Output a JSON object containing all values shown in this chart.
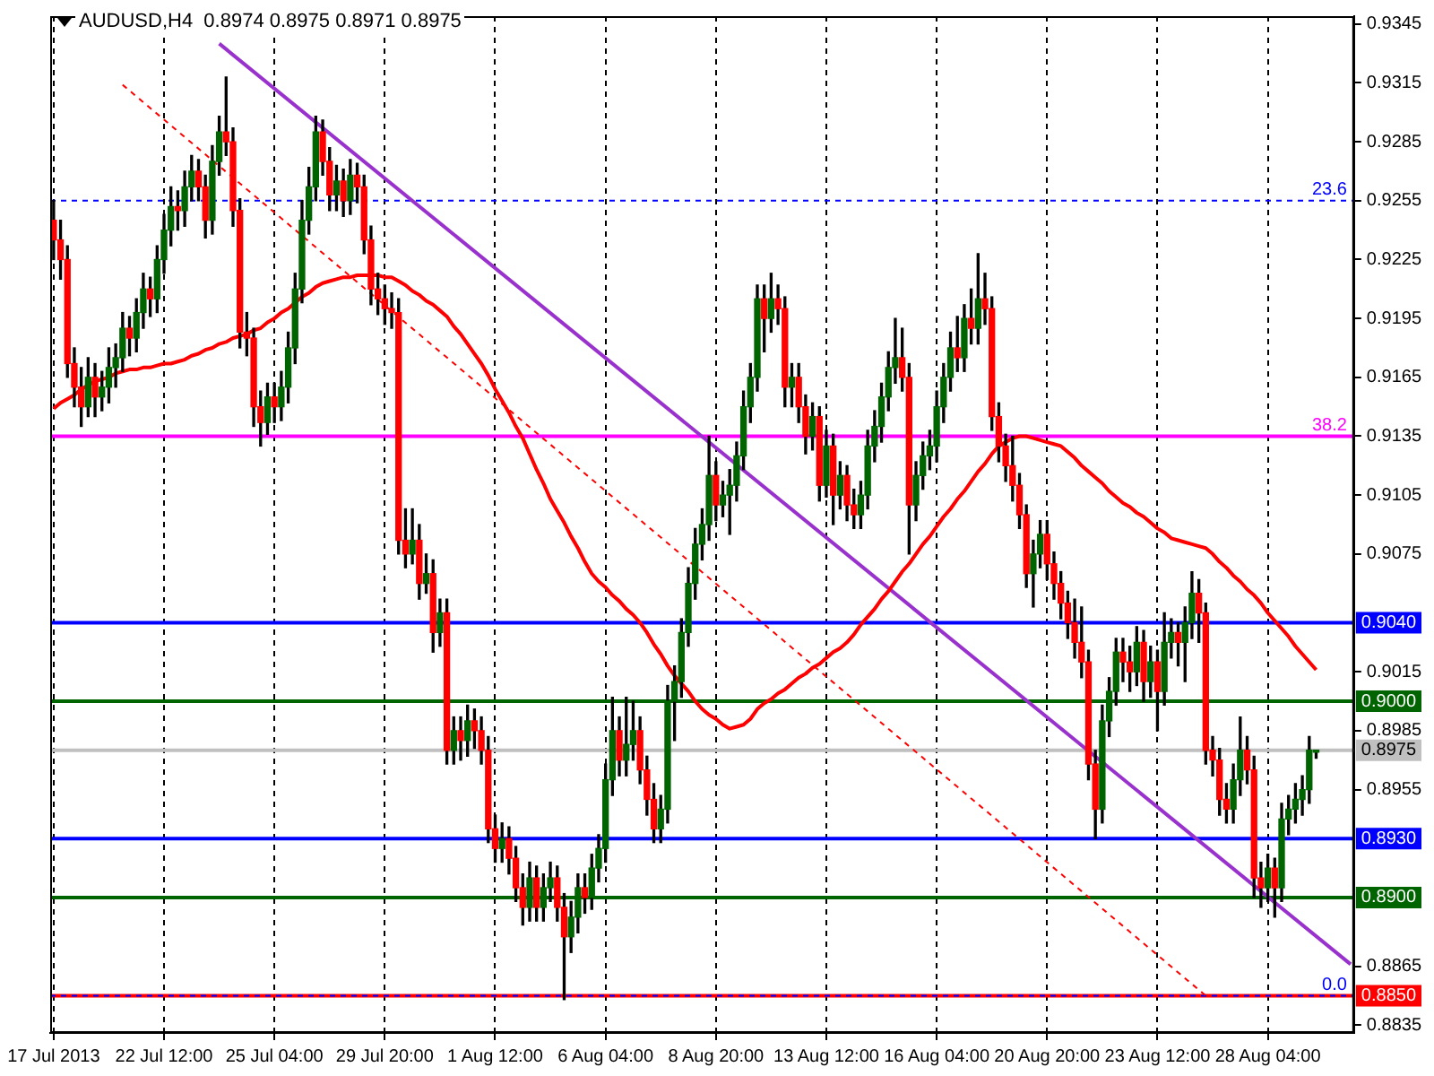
{
  "chart_data": {
    "type": "candlestick",
    "title": "AUDUSD,H4  0.8974 0.8975 0.8971 0.8975",
    "categories": [
      "17 Jul 2013",
      null,
      null,
      null,
      null,
      null,
      null,
      null,
      null,
      null,
      null,
      null,
      null,
      null,
      null,
      null,
      "22 Jul 12:00",
      null,
      null,
      null,
      null,
      null,
      null,
      null,
      null,
      null,
      null,
      null,
      null,
      null,
      null,
      null,
      "25 Jul 04:00",
      null,
      null,
      null,
      null,
      null,
      null,
      null,
      null,
      null,
      null,
      null,
      null,
      null,
      null,
      null,
      "29 Jul 20:00",
      null,
      null,
      null,
      null,
      null,
      null,
      null,
      null,
      null,
      null,
      null,
      null,
      null,
      null,
      null,
      "1 Aug 12:00",
      null,
      null,
      null,
      null,
      null,
      null,
      null,
      null,
      null,
      null,
      null,
      null,
      null,
      null,
      null,
      "6 Aug 04:00",
      null,
      null,
      null,
      null,
      null,
      null,
      null,
      null,
      null,
      null,
      null,
      null,
      null,
      null,
      null,
      "8 Aug 20:00",
      null,
      null,
      null,
      null,
      null,
      null,
      null,
      null,
      null,
      null,
      null,
      null,
      null,
      null,
      null,
      "13 Aug 12:00",
      null,
      null,
      null,
      null,
      null,
      null,
      null,
      null,
      null,
      null,
      null,
      null,
      null,
      null,
      null,
      "16 Aug 04:00",
      null,
      null,
      null,
      null,
      null,
      null,
      null,
      null,
      null,
      null,
      null,
      null,
      null,
      null,
      null,
      "20 Aug 20:00",
      null,
      null,
      null,
      null,
      null,
      null,
      null,
      null,
      null,
      null,
      null,
      null,
      null,
      null,
      null,
      "23 Aug 12:00",
      null,
      null,
      null,
      null,
      null,
      null,
      null,
      null,
      null,
      null,
      null,
      null,
      null,
      null,
      null,
      "28 Aug 04:00",
      null,
      null,
      null,
      null,
      null,
      null,
      null,
      null,
      null,
      null,
      null,
      null
    ],
    "ohlc": [
      [
        0.9245,
        0.9255,
        0.9225,
        0.9235
      ],
      [
        0.9235,
        0.9245,
        0.9215,
        0.9225
      ],
      [
        0.9225,
        0.9232,
        0.9165,
        0.9172
      ],
      [
        0.9172,
        0.918,
        0.915,
        0.916
      ],
      [
        0.916,
        0.917,
        0.914,
        0.915
      ],
      [
        0.915,
        0.9175,
        0.9145,
        0.9165
      ],
      [
        0.9165,
        0.9172,
        0.9145,
        0.9155
      ],
      [
        0.9155,
        0.9168,
        0.9148,
        0.916
      ],
      [
        0.916,
        0.918,
        0.9152,
        0.917
      ],
      [
        0.917,
        0.9182,
        0.916,
        0.9175
      ],
      [
        0.9175,
        0.9198,
        0.9168,
        0.919
      ],
      [
        0.919,
        0.9196,
        0.9176,
        0.9185
      ],
      [
        0.9185,
        0.9205,
        0.9178,
        0.9198
      ],
      [
        0.9198,
        0.9218,
        0.919,
        0.921
      ],
      [
        0.921,
        0.9216,
        0.9196,
        0.9205
      ],
      [
        0.9205,
        0.9232,
        0.9198,
        0.9225
      ],
      [
        0.9225,
        0.9248,
        0.9218,
        0.924
      ],
      [
        0.924,
        0.9262,
        0.9232,
        0.9252
      ],
      [
        0.9252,
        0.926,
        0.924,
        0.925
      ],
      [
        0.925,
        0.927,
        0.9242,
        0.9262
      ],
      [
        0.9262,
        0.9278,
        0.9255,
        0.927
      ],
      [
        0.927,
        0.9276,
        0.9255,
        0.9262
      ],
      [
        0.9262,
        0.9268,
        0.9236,
        0.9245
      ],
      [
        0.9245,
        0.9283,
        0.9238,
        0.9275
      ],
      [
        0.9275,
        0.9298,
        0.9268,
        0.929
      ],
      [
        0.929,
        0.9318,
        0.9278,
        0.9285
      ],
      [
        0.9285,
        0.9292,
        0.9242,
        0.925
      ],
      [
        0.925,
        0.9256,
        0.918,
        0.9188
      ],
      [
        0.9188,
        0.9198,
        0.9176,
        0.9185
      ],
      [
        0.9185,
        0.919,
        0.914,
        0.915
      ],
      [
        0.915,
        0.9158,
        0.913,
        0.9142
      ],
      [
        0.9142,
        0.9162,
        0.9136,
        0.9155
      ],
      [
        0.9155,
        0.9162,
        0.9142,
        0.915
      ],
      [
        0.915,
        0.9168,
        0.9143,
        0.916
      ],
      [
        0.916,
        0.9188,
        0.9152,
        0.918
      ],
      [
        0.918,
        0.9218,
        0.9172,
        0.921
      ],
      [
        0.921,
        0.9255,
        0.9203,
        0.9245
      ],
      [
        0.9245,
        0.9272,
        0.9238,
        0.9262
      ],
      [
        0.9262,
        0.9298,
        0.9255,
        0.929
      ],
      [
        0.929,
        0.9296,
        0.9268,
        0.9275
      ],
      [
        0.9275,
        0.9282,
        0.925,
        0.9258
      ],
      [
        0.9258,
        0.9273,
        0.925,
        0.9265
      ],
      [
        0.9265,
        0.9271,
        0.9247,
        0.9255
      ],
      [
        0.9255,
        0.9276,
        0.9248,
        0.9268
      ],
      [
        0.9268,
        0.9274,
        0.9254,
        0.9262
      ],
      [
        0.9262,
        0.9268,
        0.9228,
        0.9235
      ],
      [
        0.9235,
        0.9242,
        0.9202,
        0.921
      ],
      [
        0.921,
        0.9218,
        0.9197,
        0.9205
      ],
      [
        0.9205,
        0.9212,
        0.9192,
        0.92
      ],
      [
        0.92,
        0.9208,
        0.919,
        0.9198
      ],
      [
        0.9198,
        0.9205,
        0.9075,
        0.9082
      ],
      [
        0.9082,
        0.9098,
        0.9068,
        0.9075
      ],
      [
        0.9075,
        0.9098,
        0.907,
        0.9082
      ],
      [
        0.9082,
        0.909,
        0.9052,
        0.906
      ],
      [
        0.906,
        0.9075,
        0.9055,
        0.9065
      ],
      [
        0.9065,
        0.9072,
        0.9025,
        0.9035
      ],
      [
        0.9035,
        0.9052,
        0.9028,
        0.9045
      ],
      [
        0.9045,
        0.9052,
        0.8968,
        0.8975
      ],
      [
        0.8975,
        0.8992,
        0.8968,
        0.8985
      ],
      [
        0.8985,
        0.8992,
        0.897,
        0.898
      ],
      [
        0.898,
        0.8998,
        0.8972,
        0.899
      ],
      [
        0.899,
        0.8996,
        0.8976,
        0.8985
      ],
      [
        0.8985,
        0.8992,
        0.8968,
        0.8975
      ],
      [
        0.8975,
        0.8982,
        0.8928,
        0.8935
      ],
      [
        0.8935,
        0.8942,
        0.8918,
        0.8925
      ],
      [
        0.8925,
        0.8938,
        0.8918,
        0.893
      ],
      [
        0.893,
        0.8936,
        0.8912,
        0.892
      ],
      [
        0.892,
        0.8926,
        0.8898,
        0.8905
      ],
      [
        0.8905,
        0.8912,
        0.8886,
        0.8895
      ],
      [
        0.8895,
        0.8918,
        0.8888,
        0.891
      ],
      [
        0.891,
        0.8916,
        0.8888,
        0.8895
      ],
      [
        0.8895,
        0.8912,
        0.8888,
        0.8905
      ],
      [
        0.8905,
        0.8918,
        0.8898,
        0.891
      ],
      [
        0.891,
        0.8916,
        0.8888,
        0.8895
      ],
      [
        0.8895,
        0.8902,
        0.8848,
        0.888
      ],
      [
        0.888,
        0.8898,
        0.8872,
        0.889
      ],
      [
        0.889,
        0.8912,
        0.8882,
        0.8905
      ],
      [
        0.8905,
        0.8912,
        0.8892,
        0.89
      ],
      [
        0.89,
        0.8922,
        0.8894,
        0.8915
      ],
      [
        0.8915,
        0.8932,
        0.8908,
        0.8925
      ],
      [
        0.8925,
        0.8968,
        0.8918,
        0.896
      ],
      [
        0.896,
        0.9002,
        0.8952,
        0.8985
      ],
      [
        0.8985,
        0.8992,
        0.8962,
        0.897
      ],
      [
        0.897,
        0.9002,
        0.8962,
        0.8978
      ],
      [
        0.8978,
        0.9,
        0.897,
        0.8985
      ],
      [
        0.8985,
        0.8992,
        0.8958,
        0.8965
      ],
      [
        0.8965,
        0.8972,
        0.8942,
        0.895
      ],
      [
        0.895,
        0.8958,
        0.8928,
        0.8935
      ],
      [
        0.8935,
        0.8952,
        0.8928,
        0.8945
      ],
      [
        0.8945,
        0.9008,
        0.8938,
        0.9
      ],
      [
        0.9,
        0.9018,
        0.898,
        0.901
      ],
      [
        0.901,
        0.9042,
        0.9002,
        0.9035
      ],
      [
        0.9035,
        0.9068,
        0.9028,
        0.906
      ],
      [
        0.906,
        0.9088,
        0.9052,
        0.908
      ],
      [
        0.908,
        0.9098,
        0.9072,
        0.909
      ],
      [
        0.909,
        0.9135,
        0.9082,
        0.9115
      ],
      [
        0.9115,
        0.9122,
        0.9092,
        0.91
      ],
      [
        0.91,
        0.9112,
        0.9094,
        0.9105
      ],
      [
        0.9105,
        0.9118,
        0.9085,
        0.911
      ],
      [
        0.911,
        0.9132,
        0.9102,
        0.9125
      ],
      [
        0.9125,
        0.9158,
        0.9118,
        0.915
      ],
      [
        0.915,
        0.9172,
        0.9142,
        0.9165
      ],
      [
        0.9165,
        0.9212,
        0.9158,
        0.9205
      ],
      [
        0.9205,
        0.9212,
        0.9178,
        0.9195
      ],
      [
        0.9195,
        0.9218,
        0.9188,
        0.9205
      ],
      [
        0.9205,
        0.9212,
        0.9192,
        0.92
      ],
      [
        0.92,
        0.9206,
        0.915,
        0.916
      ],
      [
        0.916,
        0.9172,
        0.915,
        0.9165
      ],
      [
        0.9165,
        0.9172,
        0.9142,
        0.915
      ],
      [
        0.915,
        0.9156,
        0.9126,
        0.9135
      ],
      [
        0.9135,
        0.9152,
        0.9128,
        0.9145
      ],
      [
        0.9145,
        0.915,
        0.9102,
        0.911
      ],
      [
        0.911,
        0.9138,
        0.9104,
        0.913
      ],
      [
        0.913,
        0.9136,
        0.909,
        0.9105
      ],
      [
        0.9105,
        0.9122,
        0.9098,
        0.9115
      ],
      [
        0.9115,
        0.912,
        0.9092,
        0.91
      ],
      [
        0.91,
        0.9108,
        0.9088,
        0.9095
      ],
      [
        0.9095,
        0.9112,
        0.9088,
        0.9105
      ],
      [
        0.9105,
        0.9138,
        0.9098,
        0.913
      ],
      [
        0.913,
        0.9148,
        0.9122,
        0.914
      ],
      [
        0.914,
        0.9162,
        0.9132,
        0.9155
      ],
      [
        0.9155,
        0.9178,
        0.9148,
        0.917
      ],
      [
        0.917,
        0.9195,
        0.9162,
        0.9175
      ],
      [
        0.9175,
        0.919,
        0.9158,
        0.9165
      ],
      [
        0.9165,
        0.9172,
        0.9075,
        0.91
      ],
      [
        0.91,
        0.9122,
        0.9092,
        0.9115
      ],
      [
        0.9115,
        0.9132,
        0.9108,
        0.9125
      ],
      [
        0.9125,
        0.9138,
        0.9118,
        0.913
      ],
      [
        0.913,
        0.9158,
        0.9122,
        0.915
      ],
      [
        0.915,
        0.9172,
        0.9142,
        0.9165
      ],
      [
        0.9165,
        0.9188,
        0.9158,
        0.918
      ],
      [
        0.918,
        0.9196,
        0.9168,
        0.9175
      ],
      [
        0.9175,
        0.9202,
        0.9168,
        0.9195
      ],
      [
        0.9195,
        0.921,
        0.9182,
        0.919
      ],
      [
        0.919,
        0.9228,
        0.9182,
        0.9205
      ],
      [
        0.9205,
        0.9218,
        0.9192,
        0.92
      ],
      [
        0.92,
        0.9206,
        0.9138,
        0.9145
      ],
      [
        0.9145,
        0.9152,
        0.9122,
        0.913
      ],
      [
        0.913,
        0.9136,
        0.9112,
        0.912
      ],
      [
        0.912,
        0.9135,
        0.9102,
        0.911
      ],
      [
        0.911,
        0.9116,
        0.9088,
        0.9095
      ],
      [
        0.9095,
        0.91,
        0.9058,
        0.9065
      ],
      [
        0.9065,
        0.9082,
        0.9048,
        0.9075
      ],
      [
        0.9075,
        0.9092,
        0.9068,
        0.9085
      ],
      [
        0.9085,
        0.9092,
        0.9062,
        0.907
      ],
      [
        0.907,
        0.9076,
        0.9052,
        0.906
      ],
      [
        0.906,
        0.9066,
        0.9042,
        0.905
      ],
      [
        0.905,
        0.9056,
        0.9032,
        0.904
      ],
      [
        0.904,
        0.9052,
        0.9022,
        0.903
      ],
      [
        0.903,
        0.9048,
        0.9012,
        0.902
      ],
      [
        0.902,
        0.9026,
        0.896,
        0.8968
      ],
      [
        0.8968,
        0.8975,
        0.893,
        0.8945
      ],
      [
        0.8945,
        0.8998,
        0.8938,
        0.899
      ],
      [
        0.899,
        0.9012,
        0.8982,
        0.9005
      ],
      [
        0.9005,
        0.9032,
        0.8998,
        0.9025
      ],
      [
        0.9025,
        0.9032,
        0.901,
        0.902
      ],
      [
        0.902,
        0.9028,
        0.9005,
        0.9015
      ],
      [
        0.9015,
        0.9038,
        0.9008,
        0.903
      ],
      [
        0.903,
        0.9036,
        0.9,
        0.901
      ],
      [
        0.901,
        0.9028,
        0.9002,
        0.902
      ],
      [
        0.902,
        0.9026,
        0.8985,
        0.9005
      ],
      [
        0.9005,
        0.9045,
        0.8998,
        0.903
      ],
      [
        0.903,
        0.9042,
        0.9022,
        0.9035
      ],
      [
        0.9035,
        0.904,
        0.9018,
        0.903
      ],
      [
        0.903,
        0.9048,
        0.901,
        0.904
      ],
      [
        0.904,
        0.9066,
        0.9032,
        0.9055
      ],
      [
        0.9055,
        0.9062,
        0.903,
        0.9045
      ],
      [
        0.9045,
        0.905,
        0.8968,
        0.8975
      ],
      [
        0.8975,
        0.8982,
        0.8962,
        0.897
      ],
      [
        0.897,
        0.8976,
        0.8942,
        0.895
      ],
      [
        0.895,
        0.8958,
        0.8938,
        0.8945
      ],
      [
        0.8945,
        0.8968,
        0.8938,
        0.896
      ],
      [
        0.896,
        0.8992,
        0.8952,
        0.8975
      ],
      [
        0.8975,
        0.8982,
        0.8958,
        0.8965
      ],
      [
        0.8965,
        0.8972,
        0.89,
        0.891
      ],
      [
        0.891,
        0.8918,
        0.8895,
        0.8905
      ],
      [
        0.8905,
        0.8922,
        0.8898,
        0.8915
      ],
      [
        0.8915,
        0.892,
        0.889,
        0.8905
      ],
      [
        0.8905,
        0.8948,
        0.8898,
        0.894
      ],
      [
        0.894,
        0.8952,
        0.8932,
        0.8945
      ],
      [
        0.8945,
        0.8958,
        0.8938,
        0.895
      ],
      [
        0.895,
        0.8962,
        0.8942,
        0.8955
      ],
      [
        0.8955,
        0.8982,
        0.8948,
        0.8975
      ],
      [
        0.8974,
        0.8975,
        0.8971,
        0.8975
      ],
      null,
      null,
      null,
      null,
      null
    ],
    "colors": [
      "#ff0000",
      "#ff0000",
      "#ff0000",
      "#ff0000",
      "#ff0000",
      "#006400",
      "#ff0000",
      "#006400",
      "#006400",
      "#006400",
      "#006400",
      "#ff0000",
      "#006400",
      "#006400",
      "#ff0000",
      "#006400",
      "#006400",
      "#006400",
      "#ff0000",
      "#006400",
      "#006400",
      "#ff0000",
      "#ff0000",
      "#006400",
      "#006400",
      "#ff0000",
      "#ff0000",
      "#ff0000",
      "#ff0000",
      "#ff0000",
      "#ff0000",
      "#006400",
      "#ff0000",
      "#006400",
      "#006400",
      "#006400",
      "#006400",
      "#006400",
      "#006400",
      "#ff0000",
      "#ff0000",
      "#006400",
      "#ff0000",
      "#006400",
      "#ff0000",
      "#ff0000",
      "#ff0000",
      "#ff0000",
      "#ff0000",
      "#ff0000",
      "#ff0000",
      "#ff0000",
      "#006400",
      "#ff0000",
      "#006400",
      "#ff0000",
      "#006400",
      "#ff0000",
      "#006400",
      "#ff0000",
      "#006400",
      "#ff0000",
      "#ff0000",
      "#ff0000",
      "#ff0000",
      "#006400",
      "#ff0000",
      "#ff0000",
      "#ff0000",
      "#006400",
      "#ff0000",
      "#006400",
      "#006400",
      "#ff0000",
      "#ff0000",
      "#006400",
      "#006400",
      "#ff0000",
      "#006400",
      "#006400",
      "#006400",
      "#006400",
      "#ff0000",
      "#006400",
      "#006400",
      "#ff0000",
      "#ff0000",
      "#ff0000",
      "#006400",
      "#006400",
      "#006400",
      "#006400",
      "#006400",
      "#006400",
      "#006400",
      "#006400",
      "#ff0000",
      "#006400",
      "#006400",
      "#006400",
      "#006400",
      "#006400",
      "#006400",
      "#ff0000",
      "#006400",
      "#ff0000",
      "#ff0000",
      "#006400",
      "#ff0000",
      "#ff0000",
      "#006400",
      "#ff0000",
      "#006400",
      "#ff0000",
      "#006400",
      "#ff0000",
      "#ff0000",
      "#006400",
      "#006400",
      "#006400",
      "#006400",
      "#006400",
      "#006400",
      "#ff0000",
      "#ff0000",
      "#006400",
      "#006400",
      "#006400",
      "#006400",
      "#006400",
      "#006400",
      "#ff0000",
      "#006400",
      "#ff0000",
      "#006400",
      "#ff0000",
      "#ff0000",
      "#ff0000",
      "#ff0000",
      "#ff0000",
      "#ff0000",
      "#ff0000",
      "#006400",
      "#006400",
      "#ff0000",
      "#ff0000",
      "#ff0000",
      "#ff0000",
      "#ff0000",
      "#ff0000",
      "#ff0000",
      "#ff0000",
      "#006400",
      "#006400",
      "#006400",
      "#ff0000",
      "#ff0000",
      "#006400",
      "#ff0000",
      "#006400",
      "#ff0000",
      "#006400",
      "#006400",
      "#ff0000",
      "#006400",
      "#006400",
      "#ff0000",
      "#ff0000",
      "#ff0000",
      "#ff0000",
      "#ff0000",
      "#006400",
      "#006400",
      "#ff0000",
      "#ff0000",
      "#ff0000",
      "#006400",
      "#ff0000",
      "#006400",
      "#006400",
      "#006400",
      "#006400",
      "#006400",
      "#006400",
      null,
      null,
      null,
      null,
      null
    ],
    "series": [
      {
        "type": "line",
        "color": "#ff0000",
        "values": [
          0.9149,
          0.9152,
          0.9154,
          0.9156,
          0.9159,
          0.9161,
          0.9163,
          0.9164,
          0.9165,
          0.9167,
          0.9168,
          0.9169,
          0.9169,
          0.917,
          0.917,
          0.9171,
          0.9172,
          0.9172,
          0.9173,
          0.9174,
          0.9176,
          0.9177,
          0.9179,
          0.918,
          0.9182,
          0.9183,
          0.9185,
          0.9186,
          0.9187,
          0.9189,
          0.919,
          0.9193,
          0.9195,
          0.9198,
          0.92,
          0.9203,
          0.9206,
          0.9208,
          0.9211,
          0.9213,
          0.9214,
          0.9215,
          0.9216,
          0.9216,
          0.9217,
          0.9217,
          0.9217,
          0.9217,
          0.9216,
          0.9216,
          0.9214,
          0.9212,
          0.9209,
          0.9207,
          0.9204,
          0.9202,
          0.9199,
          0.9196,
          0.9191,
          0.9187,
          0.9182,
          0.9177,
          0.9172,
          0.9166,
          0.9159,
          0.9153,
          0.9147,
          0.914,
          0.9134,
          0.9126,
          0.9118,
          0.9111,
          0.9103,
          0.9097,
          0.9091,
          0.9084,
          0.9078,
          0.9071,
          0.9065,
          0.9061,
          0.9058,
          0.9054,
          0.9051,
          0.9047,
          0.9044,
          0.904,
          0.9035,
          0.9029,
          0.9024,
          0.9018,
          0.9013,
          0.9009,
          0.9005,
          0.9,
          0.8996,
          0.8993,
          0.8991,
          0.8988,
          0.8986,
          0.8987,
          0.8988,
          0.8991,
          0.8996,
          0.8999,
          0.9001,
          0.9004,
          0.9006,
          0.9009,
          0.9012,
          0.9014,
          0.9017,
          0.9019,
          0.9022,
          0.9025,
          0.9027,
          0.903,
          0.9034,
          0.9039,
          0.9043,
          0.9047,
          0.9052,
          0.9056,
          0.9061,
          0.9066,
          0.907,
          0.9075,
          0.908,
          0.9084,
          0.9089,
          0.9094,
          0.9098,
          0.9103,
          0.9107,
          0.9112,
          0.9117,
          0.9121,
          0.9126,
          0.913,
          0.9132,
          0.9134,
          0.9135,
          0.9135,
          0.9134,
          0.9133,
          0.9132,
          0.9131,
          0.913,
          0.9127,
          0.9124,
          0.912,
          0.9117,
          0.9114,
          0.9111,
          0.9107,
          0.9104,
          0.9101,
          0.9099,
          0.9096,
          0.9094,
          0.9091,
          0.9088,
          0.9086,
          0.9083,
          0.9082,
          0.9081,
          0.908,
          0.9079,
          0.9078,
          0.9075,
          0.9071,
          0.9068,
          0.9064,
          0.9061,
          0.9057,
          0.9054,
          0.905,
          0.9045,
          0.9041,
          0.9037,
          0.9033,
          0.9028,
          0.9024,
          0.902,
          0.9016,
          null,
          null,
          null,
          null,
          null
        ]
      },
      {
        "type": "line",
        "color": "#9932cc",
        "values": [
          null,
          null,
          null,
          null,
          null,
          null,
          null,
          null,
          null,
          null,
          null,
          null,
          null,
          null,
          null,
          null,
          null,
          null,
          null,
          null,
          null,
          null,
          null,
          null,
          0.9335,
          null,
          null,
          null,
          null,
          null,
          null,
          null,
          null,
          null,
          null,
          null,
          null,
          null,
          null,
          null,
          null,
          null,
          null,
          null,
          null,
          null,
          null,
          null,
          null,
          null,
          null,
          null,
          null,
          null,
          null,
          null,
          null,
          null,
          null,
          null,
          null,
          null,
          null,
          null,
          null,
          null,
          null,
          null,
          null,
          null,
          null,
          null,
          null,
          null,
          null,
          null,
          null,
          null,
          null,
          null,
          null,
          null,
          null,
          null,
          null,
          null,
          null,
          null,
          null,
          null,
          null,
          null,
          null,
          null,
          null,
          null,
          null,
          null,
          null,
          null,
          null,
          null,
          null,
          null,
          null,
          null,
          null,
          null,
          null,
          null,
          null,
          null,
          null,
          null,
          null,
          null,
          null,
          null,
          null,
          null,
          null,
          null,
          null,
          null,
          null,
          null,
          null,
          null,
          null,
          null,
          null,
          null,
          null,
          null,
          null,
          null,
          null,
          null,
          null,
          null,
          null,
          null,
          null,
          null,
          null,
          null,
          null,
          null,
          null,
          null,
          null,
          null,
          null,
          null,
          null,
          null,
          null,
          null,
          null,
          null,
          null,
          null,
          null,
          null,
          null,
          null,
          null,
          null,
          null,
          null,
          null,
          null,
          null,
          null,
          null,
          null,
          null,
          null,
          null,
          null,
          null,
          null,
          null,
          null,
          null,
          null,
          null,
          null,
          0.8866
        ]
      },
      {
        "type": "line",
        "color": "#ff0000",
        "line_style": "dashed",
        "values": [
          null,
          null,
          null,
          null,
          null,
          null,
          null,
          null,
          null,
          null,
          0.9314,
          null,
          null,
          null,
          null,
          null,
          null,
          null,
          null,
          null,
          null,
          null,
          null,
          null,
          null,
          null,
          null,
          null,
          null,
          null,
          null,
          null,
          null,
          null,
          null,
          null,
          null,
          null,
          null,
          null,
          null,
          null,
          null,
          null,
          null,
          null,
          null,
          null,
          null,
          null,
          null,
          null,
          null,
          null,
          null,
          null,
          null,
          null,
          null,
          null,
          null,
          null,
          null,
          null,
          null,
          null,
          null,
          null,
          null,
          null,
          null,
          null,
          null,
          null,
          null,
          null,
          null,
          null,
          null,
          null,
          null,
          null,
          null,
          null,
          null,
          null,
          null,
          null,
          null,
          null,
          null,
          null,
          null,
          null,
          null,
          null,
          null,
          null,
          null,
          null,
          null,
          null,
          null,
          null,
          null,
          null,
          null,
          null,
          null,
          null,
          null,
          null,
          null,
          null,
          null,
          null,
          null,
          null,
          null,
          null,
          null,
          null,
          null,
          null,
          null,
          null,
          null,
          null,
          null,
          null,
          null,
          null,
          null,
          null,
          null,
          null,
          null,
          null,
          null,
          null,
          null,
          null,
          null,
          null,
          null,
          null,
          null,
          null,
          null,
          null,
          null,
          null,
          null,
          null,
          null,
          null,
          null,
          null,
          null,
          null,
          null,
          null,
          null,
          null,
          null,
          null,
          null,
          0.885,
          null,
          null,
          null,
          null,
          null,
          null,
          null,
          null,
          null,
          null,
          null,
          null,
          null,
          null,
          null,
          null,
          null,
          null,
          null,
          null,
          null
        ]
      }
    ],
    "ylim": [
      0.8831,
      0.9349
    ],
    "yticks": [
      0.9345,
      0.9315,
      0.9285,
      0.9255,
      0.9225,
      0.9195,
      0.9165,
      0.9135,
      0.9105,
      0.9075,
      0.9015,
      0.8985,
      0.8955,
      0.8865,
      0.8835
    ],
    "grid": "x",
    "ref_lines": [
      {
        "axis": "y",
        "value": 0.9255,
        "color": "#0000ff",
        "line_style": "dashed"
      },
      {
        "axis": "y",
        "value": 0.9135,
        "color": "#ff00ff"
      },
      {
        "axis": "y",
        "value": 0.904,
        "label": "0.9040",
        "color": "#0000ff"
      },
      {
        "axis": "y",
        "value": 0.9,
        "label": "0.9000",
        "color": "#006400"
      },
      {
        "axis": "y",
        "value": 0.8975,
        "label": "0.8975",
        "color": "#c0c0c0"
      },
      {
        "axis": "y",
        "value": 0.893,
        "label": "0.8930",
        "color": "#0000ff"
      },
      {
        "axis": "y",
        "value": 0.89,
        "label": "0.8900",
        "color": "#006400"
      },
      {
        "axis": "y",
        "value": 0.885,
        "label": "0.8850",
        "color": "#ff0000"
      },
      {
        "axis": "y",
        "value": 0.885,
        "color": "#0000ff",
        "line_style": "dashed"
      }
    ],
    "annotations": [
      {
        "text": "23.6",
        "y": 0.9255
      },
      {
        "text": "38.2",
        "y": 0.9135
      },
      {
        "text": "0.0",
        "y": 0.885
      }
    ]
  }
}
